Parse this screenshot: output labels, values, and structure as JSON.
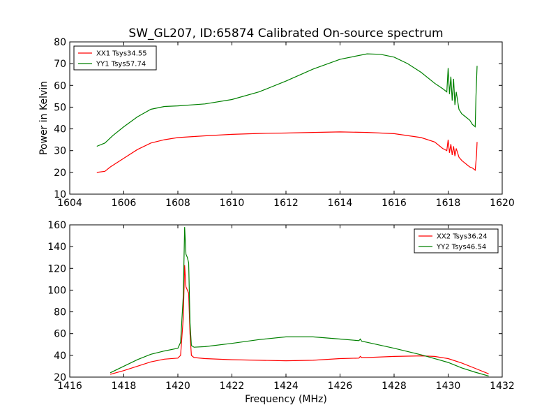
{
  "title": "SW_GL207, ID:65874 Calibrated On-source spectrum",
  "ylabel": "Power in Kelvin",
  "xlabel": "Frequency (MHz)",
  "chart_data": [
    {
      "type": "line",
      "xlim": [
        1604,
        1620
      ],
      "ylim": [
        10,
        80
      ],
      "xticks": [
        "1604",
        "1606",
        "1608",
        "1610",
        "1612",
        "1614",
        "1616",
        "1618",
        "1620"
      ],
      "yticks": [
        "10",
        "20",
        "30",
        "40",
        "50",
        "60",
        "70",
        "80"
      ],
      "legend_position": "top-left",
      "series": [
        {
          "name": "XX1 Tsys34.55",
          "color": "#ff0000",
          "x": [
            1605.0,
            1605.3,
            1605.5,
            1606.0,
            1606.5,
            1607.0,
            1607.5,
            1608.0,
            1609.0,
            1610.0,
            1611.0,
            1612.0,
            1613.0,
            1614.0,
            1615.0,
            1616.0,
            1617.0,
            1617.5,
            1617.8,
            1617.95,
            1618.0,
            1618.05,
            1618.1,
            1618.15,
            1618.2,
            1618.25,
            1618.3,
            1618.4,
            1618.5,
            1618.6,
            1618.7,
            1618.8,
            1618.9,
            1619.0,
            1619.05,
            1619.07
          ],
          "y": [
            20,
            20.5,
            22.5,
            26.5,
            30.5,
            33.5,
            35,
            36,
            36.8,
            37.5,
            37.9,
            38.1,
            38.4,
            38.6,
            38.4,
            37.8,
            36,
            34,
            31,
            30,
            35,
            29,
            33,
            28,
            32,
            27.5,
            31,
            27,
            25.5,
            24.5,
            23.5,
            22.5,
            22,
            21,
            28,
            34
          ]
        },
        {
          "name": "YY1 Tsys57.74",
          "color": "#008000",
          "x": [
            1605.0,
            1605.3,
            1605.6,
            1606.0,
            1606.5,
            1607.0,
            1607.5,
            1608.0,
            1609.0,
            1610.0,
            1611.0,
            1612.0,
            1613.0,
            1614.0,
            1615.0,
            1615.5,
            1616.0,
            1616.5,
            1617.0,
            1617.5,
            1617.8,
            1617.95,
            1618.0,
            1618.05,
            1618.1,
            1618.15,
            1618.2,
            1618.25,
            1618.3,
            1618.4,
            1618.5,
            1618.6,
            1618.7,
            1618.8,
            1618.9,
            1619.0,
            1619.03,
            1619.07
          ],
          "y": [
            32,
            33.5,
            37,
            41,
            45.5,
            49,
            50.3,
            50.6,
            51.5,
            53.5,
            57,
            62,
            67.5,
            72,
            74.5,
            74.3,
            73,
            70,
            66,
            61,
            58.5,
            57,
            68,
            56,
            64,
            53,
            63,
            51,
            57,
            49,
            47,
            46,
            45,
            44,
            42,
            41,
            55,
            69
          ]
        }
      ]
    },
    {
      "type": "line",
      "xlim": [
        1416,
        1432
      ],
      "ylim": [
        20,
        160
      ],
      "xticks": [
        "1416",
        "1418",
        "1420",
        "1422",
        "1424",
        "1426",
        "1428",
        "1430",
        "1432"
      ],
      "yticks": [
        "20",
        "40",
        "60",
        "80",
        "100",
        "120",
        "140",
        "160"
      ],
      "legend_position": "top-right",
      "series": [
        {
          "name": "XX2 Tsys36.24",
          "color": "#ff0000",
          "x": [
            1417.5,
            1418.0,
            1418.5,
            1419.0,
            1419.5,
            1420.0,
            1420.1,
            1420.2,
            1420.25,
            1420.3,
            1420.35,
            1420.4,
            1420.45,
            1420.5,
            1420.6,
            1421.0,
            1422.0,
            1423.0,
            1424.0,
            1425.0,
            1426.0,
            1426.7,
            1426.75,
            1426.8,
            1427.0,
            1428.0,
            1429.0,
            1429.5,
            1430.0,
            1430.5,
            1431.0,
            1431.5
          ],
          "y": [
            22.5,
            26,
            30,
            34,
            36.5,
            37.5,
            40,
            75,
            123,
            103,
            100,
            97,
            60,
            40,
            38,
            37,
            36,
            35.5,
            35,
            35.5,
            37,
            37.5,
            39,
            38,
            38,
            39,
            39.5,
            39,
            37,
            33,
            28,
            23
          ]
        },
        {
          "name": "YY2 Tsys46.54",
          "color": "#008000",
          "x": [
            1417.5,
            1418.0,
            1418.5,
            1419.0,
            1419.5,
            1420.0,
            1420.1,
            1420.2,
            1420.25,
            1420.3,
            1420.35,
            1420.4,
            1420.45,
            1420.5,
            1420.6,
            1421.0,
            1422.0,
            1423.0,
            1424.0,
            1425.0,
            1426.0,
            1426.7,
            1426.75,
            1426.8,
            1427.0,
            1428.0,
            1429.0,
            1430.0,
            1430.5,
            1431.0,
            1431.5
          ],
          "y": [
            24,
            30,
            36,
            41,
            44,
            46.5,
            52,
            95,
            158,
            133,
            130,
            125,
            70,
            49,
            47.5,
            48,
            51,
            54.5,
            57,
            57,
            55,
            53.5,
            55,
            53,
            52,
            46.5,
            40.5,
            33.5,
            28.5,
            24.5,
            21
          ]
        }
      ]
    }
  ]
}
